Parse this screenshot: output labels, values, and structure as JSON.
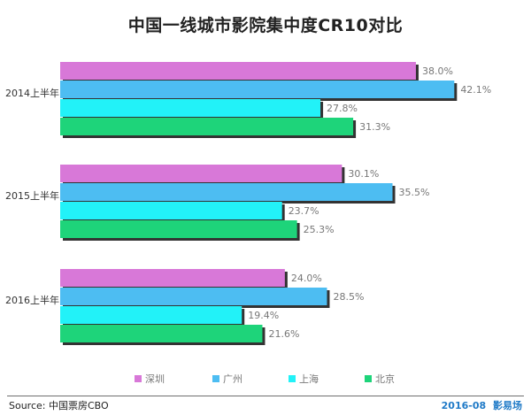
{
  "chart_data": {
    "type": "bar",
    "orientation": "horizontal",
    "title": "中国一线城市影院集中度CR10对比",
    "categories": [
      "2014上半年",
      "2015上半年",
      "2016上半年"
    ],
    "series": [
      {
        "name": "深圳",
        "color": "#d878d8",
        "values": [
          38.0,
          30.1,
          24.0
        ],
        "labels": [
          "38.0%",
          "30.1%",
          "24.0%"
        ]
      },
      {
        "name": "广州",
        "color": "#4dbdf2",
        "values": [
          42.1,
          35.5,
          28.5
        ],
        "labels": [
          "42.1%",
          "35.5%",
          "28.5%"
        ]
      },
      {
        "name": "上海",
        "color": "#22f2f8",
        "values": [
          27.8,
          23.7,
          19.4
        ],
        "labels": [
          "27.8%",
          "23.7%",
          "19.4%"
        ]
      },
      {
        "name": "北京",
        "color": "#1ed47a",
        "values": [
          31.3,
          25.3,
          21.6
        ],
        "labels": [
          "31.3%",
          "25.3%",
          "21.6%"
        ]
      }
    ],
    "xlim": [
      0,
      45
    ],
    "grid": false,
    "legend": "bottom"
  },
  "footer": {
    "source": "Source: 中国票房CBO",
    "date": "2016-08",
    "brand": "影易场"
  }
}
